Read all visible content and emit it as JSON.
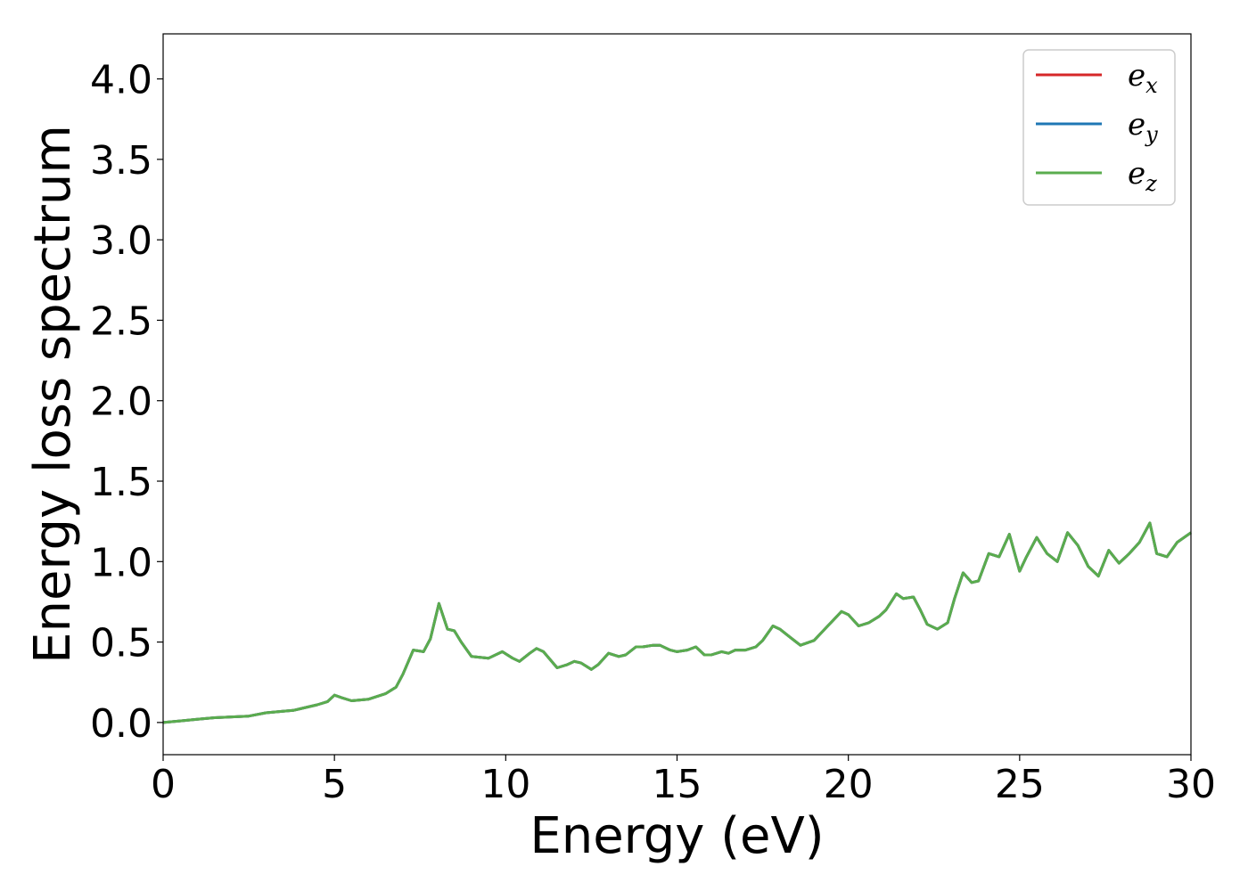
{
  "chart_data": {
    "type": "line",
    "title": "",
    "xlabel": "Energy (eV)",
    "ylabel": "Energy loss spectrum",
    "xlim": [
      0,
      30
    ],
    "ylim": [
      -0.2,
      4.28
    ],
    "xticks": [
      {
        "value": 0,
        "label": "0"
      },
      {
        "value": 5,
        "label": "5"
      },
      {
        "value": 10,
        "label": "10"
      },
      {
        "value": 15,
        "label": "15"
      },
      {
        "value": 20,
        "label": "20"
      },
      {
        "value": 25,
        "label": "25"
      },
      {
        "value": 30,
        "label": "30"
      }
    ],
    "yticks": [
      {
        "value": 0.0,
        "label": "0.0"
      },
      {
        "value": 0.5,
        "label": "0.5"
      },
      {
        "value": 1.0,
        "label": "1.0"
      },
      {
        "value": 1.5,
        "label": "1.5"
      },
      {
        "value": 2.0,
        "label": "2.0"
      },
      {
        "value": 2.5,
        "label": "2.5"
      },
      {
        "value": 3.0,
        "label": "3.0"
      },
      {
        "value": 3.5,
        "label": "3.5"
      },
      {
        "value": 4.0,
        "label": "4.0"
      }
    ],
    "grid": false,
    "legend_position": "top-right",
    "x": [
      0,
      0.5,
      1,
      1.5,
      2,
      2.5,
      3,
      3.5,
      3.8,
      4,
      4.5,
      4.8,
      5.0,
      5.2,
      5.5,
      6.0,
      6.5,
      6.8,
      7.0,
      7.3,
      7.6,
      7.8,
      8.05,
      8.3,
      8.5,
      8.7,
      9.0,
      9.5,
      9.9,
      10.2,
      10.4,
      10.7,
      10.9,
      11.1,
      11.5,
      11.8,
      12.0,
      12.2,
      12.5,
      12.7,
      13.0,
      13.3,
      13.5,
      13.8,
      14.0,
      14.3,
      14.5,
      14.8,
      15.0,
      15.3,
      15.55,
      15.8,
      16.0,
      16.3,
      16.5,
      16.7,
      17.0,
      17.3,
      17.5,
      17.8,
      18.0,
      18.3,
      18.6,
      19.0,
      19.4,
      19.8,
      20.0,
      20.3,
      20.6,
      20.9,
      21.1,
      21.4,
      21.6,
      21.9,
      22.1,
      22.3,
      22.6,
      22.9,
      23.1,
      23.35,
      23.6,
      23.8,
      24.1,
      24.4,
      24.7,
      25.0,
      25.2,
      25.5,
      25.8,
      26.1,
      26.4,
      26.7,
      27.0,
      27.3,
      27.6,
      27.9,
      28.2,
      28.5,
      28.8,
      29.0,
      29.3,
      29.6,
      30.0
    ],
    "series": [
      {
        "name": "e_x",
        "legend_base": "e",
        "legend_sub": "x",
        "color": "#d62728",
        "values": [
          0.0,
          0.01,
          0.02,
          0.03,
          0.035,
          0.04,
          0.06,
          0.07,
          0.075,
          0.085,
          0.11,
          0.13,
          0.17,
          0.155,
          0.135,
          0.145,
          0.18,
          0.22,
          0.3,
          0.45,
          0.44,
          0.52,
          0.74,
          0.58,
          0.57,
          0.5,
          0.41,
          0.4,
          0.44,
          0.4,
          0.38,
          0.43,
          0.46,
          0.44,
          0.34,
          0.36,
          0.38,
          0.37,
          0.33,
          0.36,
          0.43,
          0.41,
          0.42,
          0.47,
          0.47,
          0.48,
          0.48,
          0.45,
          0.44,
          0.45,
          0.47,
          0.42,
          0.42,
          0.44,
          0.43,
          0.45,
          0.45,
          0.47,
          0.51,
          0.6,
          0.58,
          0.53,
          0.48,
          0.51,
          0.6,
          0.69,
          0.67,
          0.6,
          0.62,
          0.66,
          0.7,
          0.8,
          0.77,
          0.78,
          0.7,
          0.61,
          0.58,
          0.62,
          0.77,
          0.93,
          0.87,
          0.88,
          1.05,
          1.03,
          1.17,
          0.94,
          1.03,
          1.15,
          1.05,
          1.0,
          1.18,
          1.1,
          0.97,
          0.91,
          1.07,
          0.99,
          1.05,
          1.12,
          1.24,
          1.05,
          1.03,
          1.12,
          1.18
        ]
      },
      {
        "name": "e_y",
        "legend_base": "e",
        "legend_sub": "y",
        "color": "#1f77b4",
        "values": [
          0.0,
          0.01,
          0.02,
          0.03,
          0.035,
          0.04,
          0.06,
          0.07,
          0.075,
          0.085,
          0.11,
          0.13,
          0.17,
          0.155,
          0.135,
          0.145,
          0.18,
          0.22,
          0.3,
          0.45,
          0.44,
          0.52,
          0.74,
          0.58,
          0.57,
          0.5,
          0.41,
          0.4,
          0.44,
          0.4,
          0.38,
          0.43,
          0.46,
          0.44,
          0.34,
          0.36,
          0.38,
          0.37,
          0.33,
          0.36,
          0.43,
          0.41,
          0.42,
          0.47,
          0.47,
          0.48,
          0.48,
          0.45,
          0.44,
          0.45,
          0.47,
          0.42,
          0.42,
          0.44,
          0.43,
          0.45,
          0.45,
          0.47,
          0.51,
          0.6,
          0.58,
          0.53,
          0.48,
          0.51,
          0.6,
          0.69,
          0.67,
          0.6,
          0.62,
          0.66,
          0.7,
          0.8,
          0.77,
          0.78,
          0.7,
          0.61,
          0.58,
          0.62,
          0.77,
          0.93,
          0.87,
          0.88,
          1.05,
          1.03,
          1.17,
          0.94,
          1.03,
          1.15,
          1.05,
          1.0,
          1.18,
          1.1,
          0.97,
          0.91,
          1.07,
          0.99,
          1.05,
          1.12,
          1.24,
          1.05,
          1.03,
          1.12,
          1.18
        ]
      },
      {
        "name": "e_z",
        "legend_base": "e",
        "legend_sub": "z",
        "color": "#5aac4e",
        "values": [
          0.0,
          0.01,
          0.02,
          0.03,
          0.035,
          0.04,
          0.06,
          0.07,
          0.075,
          0.085,
          0.11,
          0.13,
          0.17,
          0.155,
          0.135,
          0.145,
          0.18,
          0.22,
          0.3,
          0.45,
          0.44,
          0.52,
          0.74,
          0.58,
          0.57,
          0.5,
          0.41,
          0.4,
          0.44,
          0.4,
          0.38,
          0.43,
          0.46,
          0.44,
          0.34,
          0.36,
          0.38,
          0.37,
          0.33,
          0.36,
          0.43,
          0.41,
          0.42,
          0.47,
          0.47,
          0.48,
          0.48,
          0.45,
          0.44,
          0.45,
          0.47,
          0.42,
          0.42,
          0.44,
          0.43,
          0.45,
          0.45,
          0.47,
          0.51,
          0.6,
          0.58,
          0.53,
          0.48,
          0.51,
          0.6,
          0.69,
          0.67,
          0.6,
          0.62,
          0.66,
          0.7,
          0.8,
          0.77,
          0.78,
          0.7,
          0.61,
          0.58,
          0.62,
          0.77,
          0.93,
          0.87,
          0.88,
          1.05,
          1.03,
          1.17,
          0.94,
          1.03,
          1.15,
          1.05,
          1.0,
          1.18,
          1.1,
          0.97,
          0.91,
          1.07,
          0.99,
          1.05,
          1.12,
          1.24,
          1.05,
          1.03,
          1.12,
          1.18
        ]
      }
    ]
  }
}
